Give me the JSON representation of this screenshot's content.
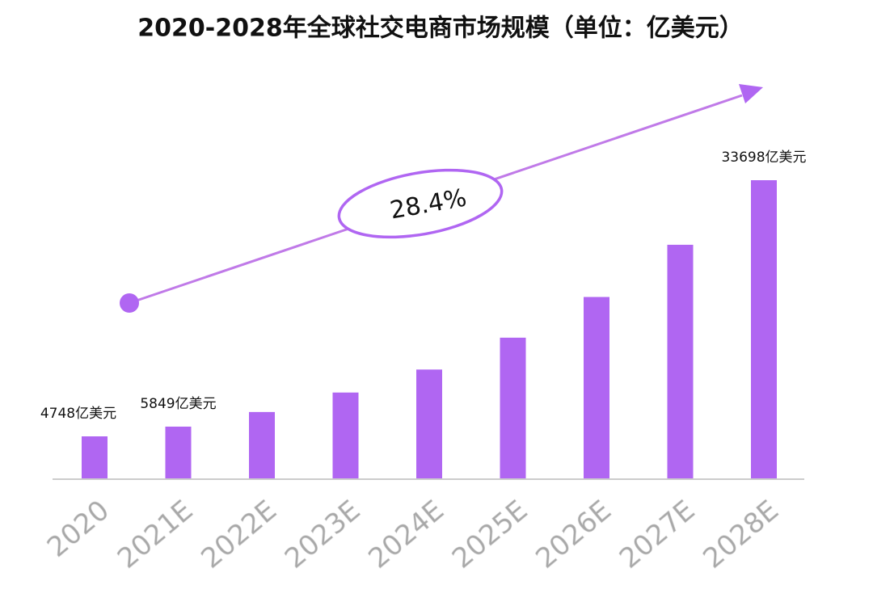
{
  "chart_data": {
    "type": "bar",
    "title": "2020-2028年全球社交电商市场规模（单位：亿美元）",
    "categories": [
      "2020",
      "2021E",
      "2022E",
      "2023E",
      "2024E",
      "2025E",
      "2026E",
      "2027E",
      "2028E"
    ],
    "values": [
      4748,
      5849,
      7500,
      9700,
      12300,
      15900,
      20500,
      26400,
      33698
    ],
    "value_labels": [
      "4748亿美元",
      "5849亿美元",
      null,
      null,
      null,
      null,
      null,
      null,
      "33698亿美元"
    ],
    "color": "#b066f2",
    "annotation": "28.4%"
  }
}
